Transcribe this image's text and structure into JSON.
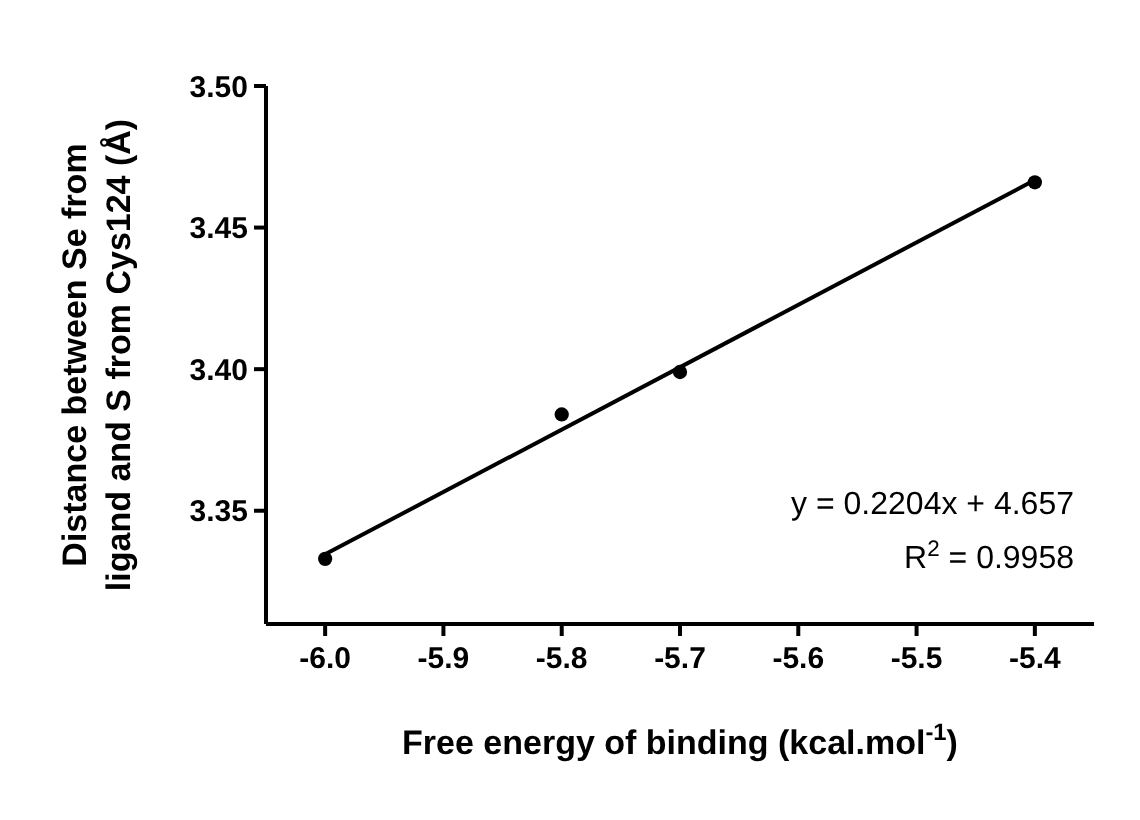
{
  "chart_data": {
    "type": "scatter",
    "xlabel": "Free energy of binding (kcal.mol$^{-1}$)",
    "ylabel": "Distance between Se from\nligand and S from Cys124 (Å)",
    "x": [
      -6.0,
      -5.8,
      -5.7,
      -5.4
    ],
    "series": [
      {
        "color": "#000000",
        "values": [
          3.333,
          3.384,
          3.399,
          3.466
        ],
        "marker": "circle"
      },
      {
        "type": "line",
        "color": "#000000",
        "x": [
          -6.0,
          -5.4
        ],
        "values": [
          3.3346,
          3.4668
        ],
        "line_style": "solid"
      }
    ],
    "xlim": [
      -6.05,
      -5.35
    ],
    "xticks": [
      {
        "value": -6.0,
        "label": "-6.0"
      },
      {
        "value": -5.9,
        "label": "-5.9"
      },
      {
        "value": -5.8,
        "label": "-5.8"
      },
      {
        "value": -5.7,
        "label": "-5.7"
      },
      {
        "value": -5.6,
        "label": "-5.6"
      },
      {
        "value": -5.5,
        "label": "-5.5"
      },
      {
        "value": -5.4,
        "label": "-5.4"
      }
    ],
    "ylim": [
      3.31,
      3.5
    ],
    "yticks": [
      {
        "value": 3.35,
        "label": "3.35"
      },
      {
        "value": 3.4,
        "label": "3.40"
      },
      {
        "value": 3.45,
        "label": "3.45"
      },
      {
        "value": 3.5,
        "label": "3.50"
      }
    ],
    "grid": false,
    "annotations": [
      "y = 0.2204x + 4.657",
      "R$^{2}$ = 0.9958"
    ]
  }
}
